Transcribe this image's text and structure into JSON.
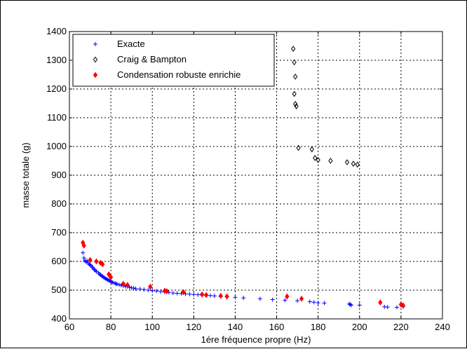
{
  "chart_data": {
    "type": "scatter",
    "xlabel": "1ére fréquence propre (Hz)",
    "ylabel": "masse totale (g)",
    "xlim": [
      60,
      240
    ],
    "ylim": [
      400,
      1400
    ],
    "xticks": [
      60,
      80,
      100,
      120,
      140,
      160,
      180,
      200,
      220,
      240
    ],
    "yticks": [
      400,
      500,
      600,
      700,
      800,
      900,
      1000,
      1100,
      1200,
      1300,
      1400
    ],
    "grid": true,
    "legend_position": "top-left",
    "series": [
      {
        "name": "Exacte",
        "marker": "plus",
        "color": "#0000ff",
        "points": [
          [
            66.5,
            630
          ],
          [
            67,
            612
          ],
          [
            67.5,
            603
          ],
          [
            68,
            598
          ],
          [
            68.5,
            602
          ],
          [
            69,
            595
          ],
          [
            69.5,
            590
          ],
          [
            70,
            588
          ],
          [
            70.5,
            585
          ],
          [
            71,
            580
          ],
          [
            71.5,
            576
          ],
          [
            72,
            572
          ],
          [
            72.5,
            568
          ],
          [
            73,
            565
          ],
          [
            74,
            560
          ],
          [
            74.5,
            556
          ],
          [
            75,
            553
          ],
          [
            75.5,
            550
          ],
          [
            76,
            548
          ],
          [
            76.5,
            545
          ],
          [
            77,
            542
          ],
          [
            77.5,
            540
          ],
          [
            78,
            538
          ],
          [
            78.5,
            536
          ],
          [
            79,
            534
          ],
          [
            79.5,
            532
          ],
          [
            80,
            530
          ],
          [
            80.5,
            528
          ],
          [
            81,
            526
          ],
          [
            82,
            524
          ],
          [
            82.5,
            522
          ],
          [
            83,
            521
          ],
          [
            84,
            519
          ],
          [
            85,
            517
          ],
          [
            86,
            515
          ],
          [
            87,
            513
          ],
          [
            88,
            512
          ],
          [
            89,
            510
          ],
          [
            90,
            508
          ],
          [
            91,
            507
          ],
          [
            92,
            505
          ],
          [
            94,
            504
          ],
          [
            96,
            502
          ],
          [
            98,
            500
          ],
          [
            100,
            498
          ],
          [
            102,
            497
          ],
          [
            104,
            495
          ],
          [
            106,
            493
          ],
          [
            108,
            492
          ],
          [
            110,
            490
          ],
          [
            112,
            489
          ],
          [
            114,
            488
          ],
          [
            116,
            487
          ],
          [
            118,
            486
          ],
          [
            120,
            485
          ],
          [
            122,
            484
          ],
          [
            124,
            483
          ],
          [
            126,
            482
          ],
          [
            128,
            481
          ],
          [
            130,
            480
          ],
          [
            133,
            478
          ],
          [
            136,
            477
          ],
          [
            140,
            475
          ],
          [
            144,
            473
          ],
          [
            152,
            470
          ],
          [
            158,
            467
          ],
          [
            164,
            465
          ],
          [
            170,
            463
          ],
          [
            176,
            460
          ],
          [
            178,
            458
          ],
          [
            180,
            456
          ],
          [
            183,
            455
          ],
          [
            195,
            452
          ],
          [
            195.5,
            450
          ],
          [
            196,
            448
          ],
          [
            200,
            448
          ],
          [
            212,
            442
          ],
          [
            213.5,
            441
          ],
          [
            218,
            440
          ],
          [
            221,
            442
          ]
        ]
      },
      {
        "name": "Craig & Bampton",
        "marker": "diamond",
        "color": "#000000",
        "points": [
          [
            168,
            1340
          ],
          [
            168.5,
            1293
          ],
          [
            169,
            1243
          ],
          [
            168.5,
            1183
          ],
          [
            169,
            1148
          ],
          [
            169.5,
            1140
          ],
          [
            170.5,
            995
          ],
          [
            177,
            990
          ],
          [
            178.5,
            960
          ],
          [
            180,
            953
          ],
          [
            186,
            950
          ],
          [
            194,
            945
          ],
          [
            197,
            940
          ],
          [
            199,
            937
          ]
        ]
      },
      {
        "name": "Condensation robuste enrichie",
        "marker": "diamond-filled",
        "color": "#ff0000",
        "points": [
          [
            66.5,
            665
          ],
          [
            67,
            655
          ],
          [
            70,
            605
          ],
          [
            73,
            600
          ],
          [
            75,
            595
          ],
          [
            76,
            590
          ],
          [
            79,
            555
          ],
          [
            80,
            545
          ],
          [
            86,
            522
          ],
          [
            88,
            518
          ],
          [
            99,
            512
          ],
          [
            106,
            498
          ],
          [
            107,
            496
          ],
          [
            115,
            493
          ],
          [
            124,
            485
          ],
          [
            126,
            483
          ],
          [
            133,
            480
          ],
          [
            136,
            478
          ],
          [
            165,
            478
          ],
          [
            172,
            470
          ],
          [
            210,
            457
          ],
          [
            220,
            450
          ],
          [
            221,
            447
          ]
        ]
      }
    ]
  }
}
